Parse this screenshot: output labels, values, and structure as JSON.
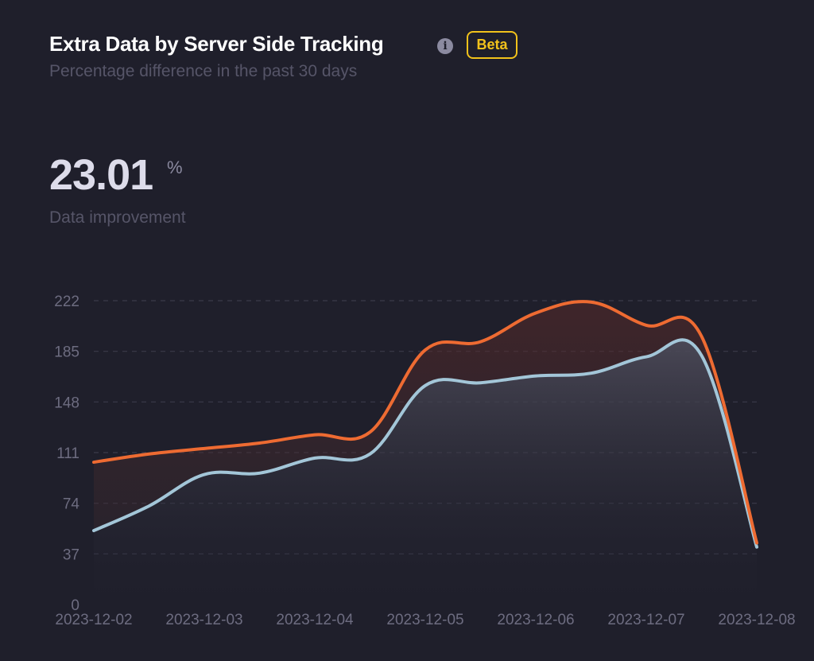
{
  "header": {
    "title": "Extra Data by Server Side Tracking",
    "info_icon": "info-icon",
    "badge": "Beta",
    "subtitle": "Percentage difference in the past 30 days"
  },
  "metric": {
    "value": "23.01",
    "unit": "%",
    "label": "Data improvement"
  },
  "colors": {
    "background": "#1f1f2b",
    "series_orange": "#ee6b32",
    "series_blue": "#a3c6d8",
    "badge": "#f2c21b"
  },
  "chart_data": {
    "type": "area",
    "title": "",
    "xlabel": "",
    "ylabel": "",
    "x": [
      "2023-12-02",
      "2023-12-02.5",
      "2023-12-03",
      "2023-12-03.5",
      "2023-12-04",
      "2023-12-04.5",
      "2023-12-05",
      "2023-12-05.5",
      "2023-12-06",
      "2023-12-06.5",
      "2023-12-07",
      "2023-12-07.5",
      "2023-12-08"
    ],
    "x_tick_labels": [
      "2023-12-02",
      "2023-12-03",
      "2023-12-04",
      "2023-12-05",
      "2023-12-06",
      "2023-12-07",
      "2023-12-08"
    ],
    "y_ticks": [
      0,
      37,
      74,
      111,
      148,
      185,
      222
    ],
    "ylim": [
      0,
      222
    ],
    "grid": true,
    "series": [
      {
        "color": "#ee6b32",
        "values": [
          104,
          110,
          114,
          118,
          124,
          126,
          186,
          192,
          213,
          221,
          204,
          196,
          45
        ]
      },
      {
        "color": "#a3c6d8",
        "values": [
          54,
          72,
          95,
          96,
          107,
          110,
          160,
          162,
          167,
          169,
          181,
          182,
          42
        ]
      }
    ]
  }
}
